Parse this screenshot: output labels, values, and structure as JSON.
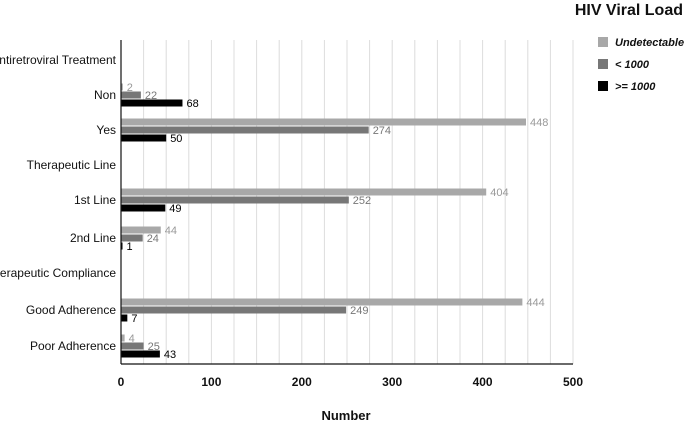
{
  "chart_data": {
    "type": "bar",
    "orientation": "horizontal",
    "xlabel": "Number",
    "xlim": [
      0,
      500
    ],
    "xticks": [
      0,
      100,
      200,
      300,
      400,
      500
    ],
    "grid": true,
    "legend_title": "HIV Viral Load",
    "legend_position": "top-right",
    "series": [
      {
        "name": "Undetectable",
        "color": "#a8a8a8",
        "label_color": "#999999"
      },
      {
        "name": "< 1000",
        "color": "#777777",
        "label_color": "#777777"
      },
      {
        "name": ">= 1000",
        "color": "#000000",
        "label_color": "#000000"
      }
    ],
    "rows": [
      {
        "label": "Antiretroviral Treatment",
        "header": true
      },
      {
        "label": "Non",
        "values": [
          2,
          22,
          68
        ]
      },
      {
        "label": "Yes",
        "values": [
          448,
          274,
          50
        ]
      },
      {
        "label": "Therapeutic Line",
        "header": true
      },
      {
        "label": "1st Line",
        "values": [
          404,
          252,
          49
        ]
      },
      {
        "label": "2nd Line",
        "values": [
          44,
          24,
          1
        ]
      },
      {
        "label": "Therapeutic Compliance",
        "header": true
      },
      {
        "label": "Good Adherence",
        "values": [
          444,
          249,
          7
        ]
      },
      {
        "label": "Poor Adherence",
        "values": [
          4,
          25,
          43
        ]
      }
    ]
  }
}
